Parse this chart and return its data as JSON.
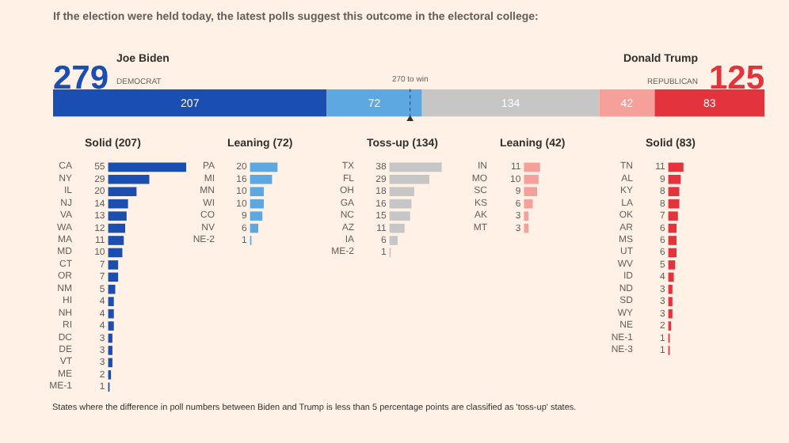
{
  "chart_data": [
    {
      "type": "bar",
      "orientation": "horizontal",
      "stacked": true,
      "title": "If the election were held today, the latest polls suggest this outcome in the electoral college:",
      "categories": [
        null
      ],
      "series": [
        {
          "color": "#1a4eb0",
          "values": [
            207
          ]
        },
        {
          "color": "#5ea8e2",
          "values": [
            72
          ]
        },
        {
          "color": "#c6c6c6",
          "values": [
            134
          ]
        },
        {
          "color": "#f6a09c",
          "values": [
            42
          ]
        },
        {
          "color": "#e3333c",
          "values": [
            83
          ]
        }
      ],
      "xlim": [
        0,
        538
      ],
      "tick_labels": false,
      "data_labels": true,
      "ref_lines": [
        {
          "axis": "x",
          "value": 270,
          "label": "270 to win"
        }
      ],
      "annotations": [
        "279",
        "Joe Biden",
        "DEMOCRAT",
        "Donald Trump",
        "REPUBLICAN",
        "125"
      ]
    },
    {
      "type": "bar",
      "orientation": "horizontal",
      "title": "Solid (207)",
      "categories": [
        "CA",
        "NY",
        "IL",
        "NJ",
        "VA",
        "WA",
        "MA",
        "MD",
        "CT",
        "OR",
        "NM",
        "HI",
        "NH",
        "RI",
        "DC",
        "DE",
        "VT",
        "ME",
        "ME-1"
      ],
      "values": [
        55,
        29,
        20,
        14,
        13,
        12,
        11,
        10,
        7,
        7,
        5,
        4,
        4,
        4,
        3,
        3,
        3,
        2,
        1
      ],
      "color": "#1a4eb0",
      "tick_labels": "y",
      "data_labels": true
    },
    {
      "type": "bar",
      "orientation": "horizontal",
      "title": "Leaning (72)",
      "categories": [
        "PA",
        "MI",
        "MN",
        "WI",
        "CO",
        "NV",
        "NE-2"
      ],
      "values": [
        20,
        16,
        10,
        10,
        9,
        6,
        1
      ],
      "color": "#5ea8e2",
      "tick_labels": "y",
      "data_labels": true
    },
    {
      "type": "bar",
      "orientation": "horizontal",
      "title": "Toss-up (134)",
      "categories": [
        "TX",
        "FL",
        "OH",
        "GA",
        "NC",
        "AZ",
        "IA",
        "ME-2"
      ],
      "values": [
        38,
        29,
        18,
        16,
        15,
        11,
        6,
        1
      ],
      "color": "#c6c6c6",
      "tick_labels": "y",
      "data_labels": true
    },
    {
      "type": "bar",
      "orientation": "horizontal",
      "title": "Leaning (42)",
      "categories": [
        "IN",
        "MO",
        "SC",
        "KS",
        "AK",
        "MT"
      ],
      "values": [
        11,
        10,
        9,
        6,
        3,
        3
      ],
      "color": "#f6a09c",
      "tick_labels": "y",
      "data_labels": true
    },
    {
      "type": "bar",
      "orientation": "horizontal",
      "title": "Solid (83)",
      "categories": [
        "TN",
        "AL",
        "KY",
        "LA",
        "OK",
        "AR",
        "MS",
        "UT",
        "WV",
        "ID",
        "ND",
        "SD",
        "WY",
        "NE",
        "NE-1",
        "NE-3"
      ],
      "values": [
        11,
        9,
        8,
        8,
        7,
        6,
        6,
        6,
        5,
        4,
        3,
        3,
        3,
        2,
        1,
        1
      ],
      "color": "#e3333c",
      "tick_labels": "y",
      "data_labels": true,
      "annotations": [
        "States where the difference in poll numbers between Biden and Trump is less than 5 percentage points are classified as 'toss-up' states."
      ]
    }
  ]
}
